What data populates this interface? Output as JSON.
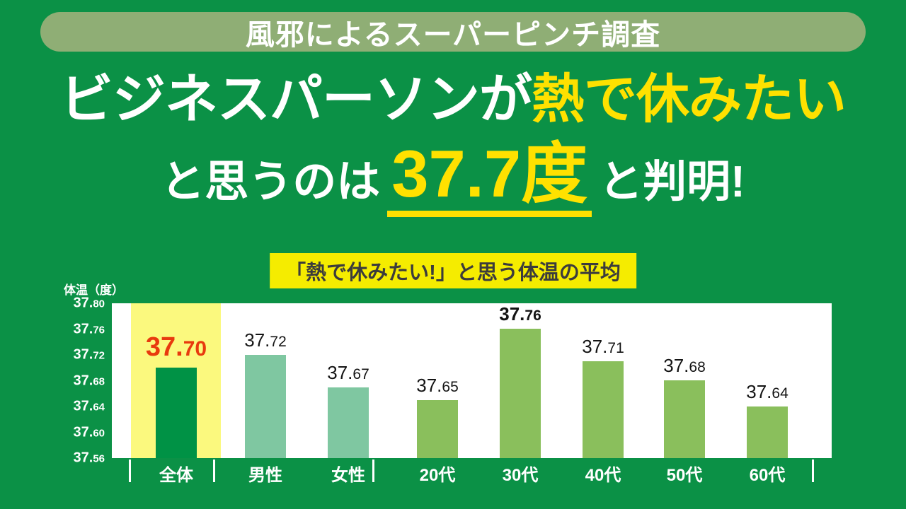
{
  "banner": {
    "label": "風邪によるスーパーピンチ調査"
  },
  "headline": {
    "line1_white": "ビジネスパーソンが",
    "line1_yellow": "熱で休みたい",
    "line2_prefix": "と思うのは",
    "line2_number": "37.7度",
    "line2_suffix": "と判明!"
  },
  "chart_data": {
    "type": "bar",
    "title": "「熱で休みたい!」と思う体温の平均",
    "ylabel": "体温（度）",
    "ylim": [
      37.56,
      37.8
    ],
    "yticks": [
      "37.80",
      "37.76",
      "37.72",
      "37.68",
      "37.64",
      "37.60",
      "37.56"
    ],
    "categories": [
      "全体",
      "男性",
      "女性",
      "20代",
      "30代",
      "40代",
      "50代",
      "60代"
    ],
    "values": [
      37.7,
      37.72,
      37.67,
      37.65,
      37.76,
      37.71,
      37.68,
      37.64
    ],
    "value_labels": [
      "37.70",
      "37.72",
      "37.67",
      "37.65",
      "37.76",
      "37.71",
      "37.68",
      "37.64"
    ],
    "bar_colors": [
      "#009245",
      "#7fc7a1",
      "#7fc7a1",
      "#8abf5c",
      "#8abf5c",
      "#8abf5c",
      "#8abf5c",
      "#8abf5c"
    ],
    "label_styles": [
      "red-large",
      "normal",
      "normal",
      "normal",
      "bold",
      "normal",
      "normal",
      "normal"
    ],
    "highlight": {
      "category": "全体",
      "band_color": "#fbf97e"
    },
    "grid": false,
    "legend": false
  },
  "colors": {
    "background": "#0b9146",
    "banner_bg": "#8fae75",
    "headline_yellow": "#ffe100",
    "chart_title_bg": "#f5ec00",
    "value_red": "#e83a0e",
    "plot_bg": "#ffffff",
    "axis_text": "#ffffff"
  }
}
